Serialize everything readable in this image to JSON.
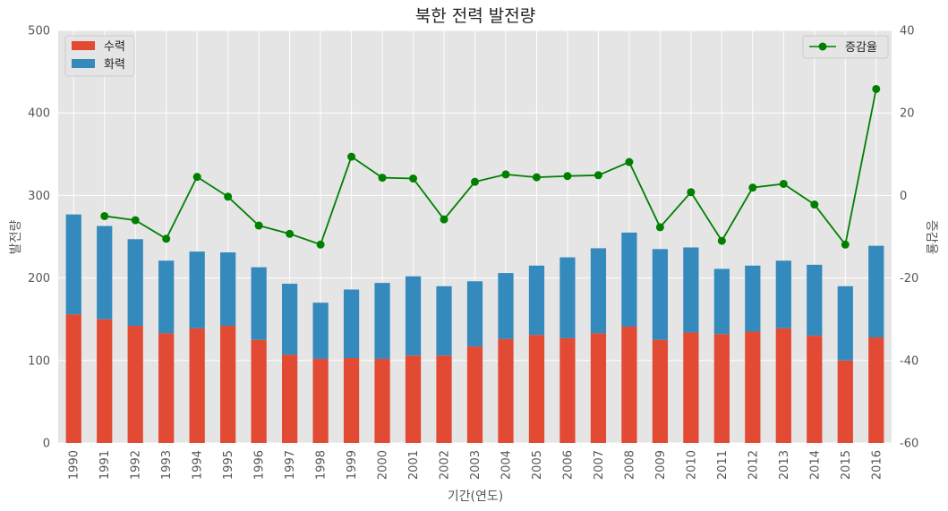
{
  "chart_data": {
    "type": "bar",
    "title": "북한 전력 발전량",
    "xlabel": "기간(연도)",
    "ylabel": "발전량",
    "y2label": "증감율",
    "ylim": [
      0,
      500
    ],
    "y2lim": [
      -60,
      40
    ],
    "yticks": [
      0,
      100,
      200,
      300,
      400,
      500
    ],
    "y2ticks": [
      -60,
      -40,
      -20,
      0,
      20,
      40
    ],
    "grid": true,
    "categories": [
      "1990",
      "1991",
      "1992",
      "1993",
      "1994",
      "1995",
      "1996",
      "1997",
      "1998",
      "1999",
      "2000",
      "2001",
      "2002",
      "2003",
      "2004",
      "2005",
      "2006",
      "2007",
      "2008",
      "2009",
      "2010",
      "2011",
      "2012",
      "2013",
      "2014",
      "2015",
      "2016"
    ],
    "series": [
      {
        "name": "수력",
        "kind": "stacked-bar",
        "color": "#E24A33",
        "values": [
          156,
          150,
          142,
          133,
          139,
          142,
          125,
          107,
          102,
          103,
          102,
          106,
          106,
          117,
          126,
          131,
          127,
          133,
          141,
          125,
          134,
          132,
          135,
          139,
          130,
          100,
          128
        ]
      },
      {
        "name": "화력",
        "kind": "stacked-bar",
        "color": "#348ABD",
        "values": [
          121,
          113,
          105,
          88,
          93,
          89,
          88,
          86,
          68,
          83,
          92,
          96,
          84,
          79,
          80,
          84,
          98,
          103,
          114,
          110,
          103,
          79,
          80,
          82,
          86,
          90,
          111
        ]
      },
      {
        "name": "증감율",
        "kind": "line",
        "axis": "right",
        "color": "#008000",
        "values": [
          null,
          -5.0,
          -6.0,
          -10.5,
          4.5,
          -0.3,
          -7.3,
          -9.3,
          -11.9,
          9.4,
          4.3,
          4.1,
          -5.8,
          3.3,
          5.1,
          4.4,
          4.7,
          4.9,
          8.1,
          -7.7,
          0.8,
          -11.0,
          1.9,
          2.8,
          -2.2,
          -11.9,
          25.8
        ]
      }
    ],
    "legend": {
      "bars": "top-left",
      "line": "top-right"
    }
  }
}
